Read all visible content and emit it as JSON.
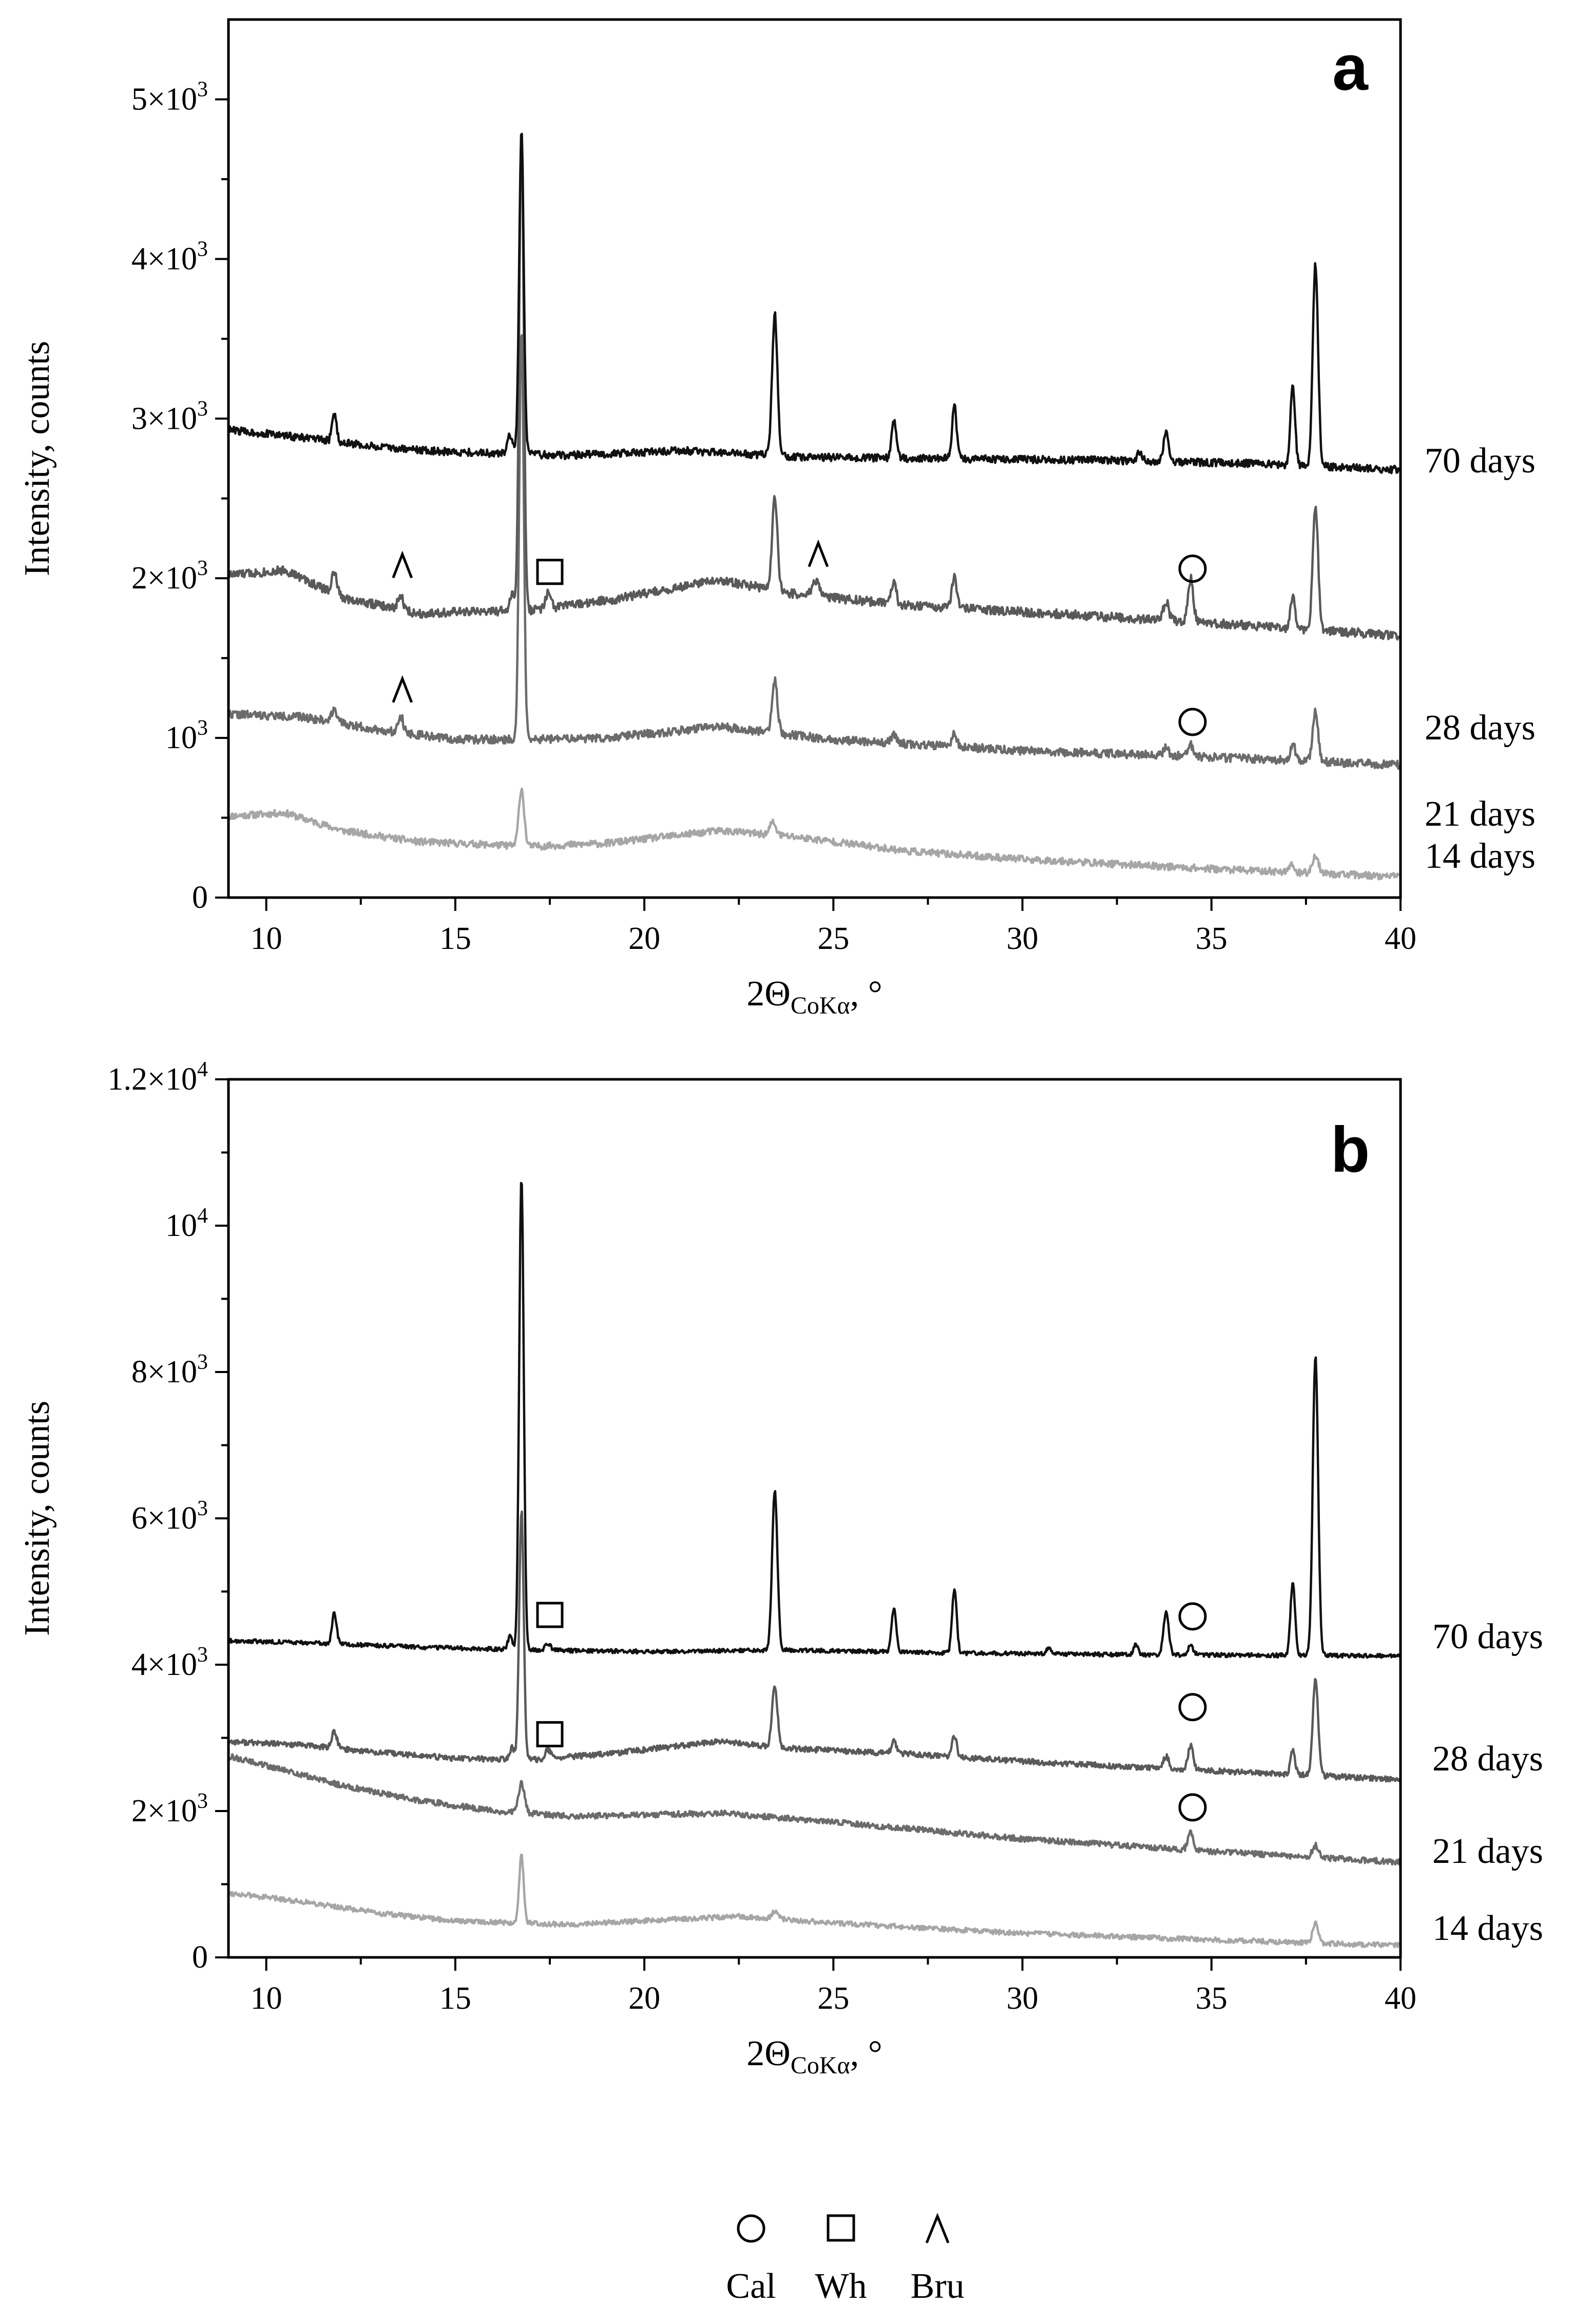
{
  "figure": {
    "legend": {
      "placement": "bottom-center",
      "items": [
        {
          "marker": "circle",
          "label": "Cal"
        },
        {
          "marker": "square",
          "label": "Wh"
        },
        {
          "marker": "caret",
          "label": "Bru"
        }
      ]
    }
  },
  "chart_data": [
    {
      "type": "line",
      "panel_label": "a",
      "xlabel_main": "2Θ",
      "xlabel_sub": "CoKα",
      "xlabel_suffix": ", °",
      "ylabel": "Intensity, counts",
      "xlim": [
        9,
        40
      ],
      "ylim": [
        0,
        5500
      ],
      "grid": false,
      "xticks": [
        {
          "value": 10,
          "label": "10"
        },
        {
          "value": 15,
          "label": "15"
        },
        {
          "value": 20,
          "label": "20"
        },
        {
          "value": 25,
          "label": "25"
        },
        {
          "value": 30,
          "label": "30"
        },
        {
          "value": 35,
          "label": "35"
        },
        {
          "value": 40,
          "label": "40"
        }
      ],
      "yticks": [
        {
          "value": 0,
          "base": "0",
          "exp": ""
        },
        {
          "value": 1000,
          "base": "10",
          "exp": "3"
        },
        {
          "value": 2000,
          "base": "2×10",
          "exp": "3"
        },
        {
          "value": 3000,
          "base": "3×10",
          "exp": "3"
        },
        {
          "value": 4000,
          "base": "4×10",
          "exp": "3"
        },
        {
          "value": 5000,
          "base": "5×10",
          "exp": "3"
        }
      ],
      "series": [
        {
          "name": "14 days",
          "color": "#a6a6a6",
          "seed": 11,
          "noise": 22,
          "baseline": [
            [
              9,
              510
            ],
            [
              10.5,
              530
            ],
            [
              12,
              420
            ],
            [
              14,
              350
            ],
            [
              17,
              320
            ],
            [
              19,
              340
            ],
            [
              22,
              420
            ],
            [
              24,
              380
            ],
            [
              27,
              290
            ],
            [
              30,
              240
            ],
            [
              35,
              180
            ],
            [
              40,
              130
            ]
          ],
          "peaks": [
            [
              16.75,
              360,
              0.07
            ],
            [
              23.4,
              80,
              0.08
            ],
            [
              37.75,
              110,
              0.08
            ],
            [
              37.1,
              50,
              0.07
            ]
          ],
          "markers": []
        },
        {
          "name": "21 days",
          "color": "#6b6b6b",
          "seed": 22,
          "noise": 26,
          "baseline": [
            [
              9,
              1150
            ],
            [
              11,
              1130
            ],
            [
              13,
              1050
            ],
            [
              15,
              990
            ],
            [
              17,
              990
            ],
            [
              19,
              1000
            ],
            [
              22,
              1070
            ],
            [
              25,
              990
            ],
            [
              30,
              920
            ],
            [
              35,
              880
            ],
            [
              40,
              830
            ]
          ],
          "peaks": [
            [
              11.8,
              90,
              0.07
            ],
            [
              13.55,
              110,
              0.07
            ],
            [
              16.75,
              2560,
              0.06
            ],
            [
              23.45,
              330,
              0.07
            ],
            [
              26.6,
              50,
              0.07
            ],
            [
              28.2,
              90,
              0.06
            ],
            [
              33.8,
              50,
              0.07
            ],
            [
              34.45,
              70,
              0.08
            ],
            [
              37.15,
              110,
              0.06
            ],
            [
              37.75,
              310,
              0.07
            ]
          ],
          "markers": [
            {
              "type": "caret",
              "x": 13.6,
              "y": 1300
            },
            {
              "type": "circle",
              "x": 34.5,
              "y": 1100
            }
          ]
        },
        {
          "name": "28 days",
          "color": "#595959",
          "seed": 33,
          "noise": 28,
          "baseline": [
            [
              9,
              2020
            ],
            [
              10.5,
              2050
            ],
            [
              12,
              1880
            ],
            [
              14,
              1780
            ],
            [
              17,
              1800
            ],
            [
              19,
              1860
            ],
            [
              22,
              1990
            ],
            [
              24,
              1900
            ],
            [
              27,
              1830
            ],
            [
              30,
              1790
            ],
            [
              35,
              1720
            ],
            [
              40,
              1640
            ]
          ],
          "peaks": [
            [
              11.8,
              130,
              0.07
            ],
            [
              13.55,
              90,
              0.07
            ],
            [
              16.5,
              100,
              0.06
            ],
            [
              16.75,
              3000,
              0.06
            ],
            [
              17.45,
              90,
              0.07
            ],
            [
              23.45,
              580,
              0.07
            ],
            [
              24.55,
              100,
              0.1
            ],
            [
              26.6,
              150,
              0.06
            ],
            [
              28.2,
              210,
              0.06
            ],
            [
              33.8,
              120,
              0.07
            ],
            [
              34.45,
              270,
              0.07
            ],
            [
              37.15,
              200,
              0.06
            ],
            [
              37.75,
              760,
              0.07
            ]
          ],
          "markers": [
            {
              "type": "caret",
              "x": 13.6,
              "y": 2080
            },
            {
              "type": "square",
              "x": 17.5,
              "y": 2040
            },
            {
              "type": "caret",
              "x": 24.6,
              "y": 2150
            },
            {
              "type": "circle",
              "x": 34.5,
              "y": 2060
            }
          ]
        },
        {
          "name": "70 days",
          "color": "#111111",
          "seed": 44,
          "noise": 24,
          "baseline": [
            [
              9,
              2930
            ],
            [
              11,
              2880
            ],
            [
              13,
              2820
            ],
            [
              15,
              2790
            ],
            [
              18,
              2770
            ],
            [
              21,
              2800
            ],
            [
              24,
              2760
            ],
            [
              28,
              2750
            ],
            [
              32,
              2740
            ],
            [
              36,
              2720
            ],
            [
              40,
              2680
            ]
          ],
          "peaks": [
            [
              11.8,
              170,
              0.06
            ],
            [
              16.45,
              120,
              0.06
            ],
            [
              16.75,
              2020,
              0.06
            ],
            [
              23.45,
              890,
              0.07
            ],
            [
              26.6,
              240,
              0.06
            ],
            [
              28.2,
              330,
              0.06
            ],
            [
              33.1,
              60,
              0.06
            ],
            [
              33.8,
              180,
              0.07
            ],
            [
              37.15,
              510,
              0.06
            ],
            [
              37.75,
              1260,
              0.07
            ]
          ],
          "markers": []
        }
      ]
    },
    {
      "type": "line",
      "panel_label": "b",
      "xlabel_main": "2Θ",
      "xlabel_sub": "CoKα",
      "xlabel_suffix": ", °",
      "ylabel": "Intensity, counts",
      "xlim": [
        9,
        40
      ],
      "ylim": [
        0,
        12000
      ],
      "grid": false,
      "xticks": [
        {
          "value": 10,
          "label": "10"
        },
        {
          "value": 15,
          "label": "15"
        },
        {
          "value": 20,
          "label": "20"
        },
        {
          "value": 25,
          "label": "25"
        },
        {
          "value": 30,
          "label": "30"
        },
        {
          "value": 35,
          "label": "35"
        },
        {
          "value": 40,
          "label": "40"
        }
      ],
      "yticks": [
        {
          "value": 0,
          "base": "0",
          "exp": ""
        },
        {
          "value": 2000,
          "base": "2×10",
          "exp": "3"
        },
        {
          "value": 4000,
          "base": "4×10",
          "exp": "3"
        },
        {
          "value": 6000,
          "base": "6×10",
          "exp": "3"
        },
        {
          "value": 8000,
          "base": "8×10",
          "exp": "3"
        },
        {
          "value": 10000,
          "base": "10",
          "exp": "4"
        },
        {
          "value": 12000,
          "base": "1.2×10",
          "exp": "4"
        }
      ],
      "series": [
        {
          "name": "14 days",
          "color": "#a6a6a6",
          "seed": 55,
          "noise": 35,
          "baseline": [
            [
              9,
              880
            ],
            [
              11,
              760
            ],
            [
              13,
              600
            ],
            [
              15,
              500
            ],
            [
              18,
              450
            ],
            [
              20,
              500
            ],
            [
              22.5,
              560
            ],
            [
              25,
              470
            ],
            [
              30,
              330
            ],
            [
              35,
              240
            ],
            [
              40,
              160
            ]
          ],
          "peaks": [
            [
              16.75,
              920,
              0.06
            ],
            [
              23.45,
              100,
              0.08
            ],
            [
              37.75,
              290,
              0.07
            ]
          ],
          "markers": []
        },
        {
          "name": "21 days",
          "color": "#6b6b6b",
          "seed": 66,
          "noise": 40,
          "baseline": [
            [
              9,
              2750
            ],
            [
              10,
              2620
            ],
            [
              12,
              2350
            ],
            [
              14,
              2150
            ],
            [
              16,
              2000
            ],
            [
              18,
              1930
            ],
            [
              22,
              1970
            ],
            [
              25,
              1850
            ],
            [
              30,
              1620
            ],
            [
              35,
              1450
            ],
            [
              40,
              1300
            ]
          ],
          "peaks": [
            [
              16.75,
              400,
              0.08
            ],
            [
              34.45,
              230,
              0.07
            ],
            [
              37.75,
              160,
              0.08
            ]
          ],
          "markers": [
            {
              "type": "circle",
              "x": 34.5,
              "y": 2050
            }
          ]
        },
        {
          "name": "28 days",
          "color": "#595959",
          "seed": 77,
          "noise": 38,
          "baseline": [
            [
              9,
              2950
            ],
            [
              11,
              2900
            ],
            [
              13,
              2800
            ],
            [
              15,
              2720
            ],
            [
              17,
              2700
            ],
            [
              19,
              2780
            ],
            [
              22,
              2950
            ],
            [
              24,
              2850
            ],
            [
              27,
              2780
            ],
            [
              30,
              2680
            ],
            [
              35,
              2550
            ],
            [
              40,
              2430
            ]
          ],
          "peaks": [
            [
              11.8,
              220,
              0.07
            ],
            [
              16.5,
              160,
              0.06
            ],
            [
              16.75,
              3400,
              0.06
            ],
            [
              17.45,
              120,
              0.07
            ],
            [
              23.45,
              830,
              0.07
            ],
            [
              26.6,
              170,
              0.06
            ],
            [
              28.2,
              290,
              0.06
            ],
            [
              33.8,
              170,
              0.07
            ],
            [
              34.45,
              330,
              0.07
            ],
            [
              37.15,
              320,
              0.06
            ],
            [
              37.75,
              1330,
              0.07
            ]
          ],
          "markers": [
            {
              "type": "square",
              "x": 17.5,
              "y": 3050
            },
            {
              "type": "circle",
              "x": 34.5,
              "y": 3420
            }
          ]
        },
        {
          "name": "70 days",
          "color": "#111111",
          "seed": 88,
          "noise": 28,
          "baseline": [
            [
              9,
              4330
            ],
            [
              11,
              4300
            ],
            [
              14,
              4240
            ],
            [
              17,
              4200
            ],
            [
              20,
              4180
            ],
            [
              24,
              4200
            ],
            [
              28,
              4160
            ],
            [
              32,
              4140
            ],
            [
              36,
              4130
            ],
            [
              40,
              4120
            ]
          ],
          "peaks": [
            [
              11.8,
              420,
              0.06
            ],
            [
              16.45,
              180,
              0.06
            ],
            [
              16.75,
              6480,
              0.06
            ],
            [
              17.45,
              90,
              0.07
            ],
            [
              23.45,
              2180,
              0.07
            ],
            [
              26.6,
              600,
              0.06
            ],
            [
              28.2,
              880,
              0.06
            ],
            [
              30.7,
              90,
              0.06
            ],
            [
              33.0,
              140,
              0.06
            ],
            [
              33.8,
              580,
              0.07
            ],
            [
              34.45,
              120,
              0.07
            ],
            [
              37.15,
              1000,
              0.06
            ],
            [
              37.75,
              4100,
              0.07
            ]
          ],
          "markers": [
            {
              "type": "square",
              "x": 17.5,
              "y": 4680
            },
            {
              "type": "circle",
              "x": 34.5,
              "y": 4660
            }
          ]
        }
      ]
    }
  ]
}
